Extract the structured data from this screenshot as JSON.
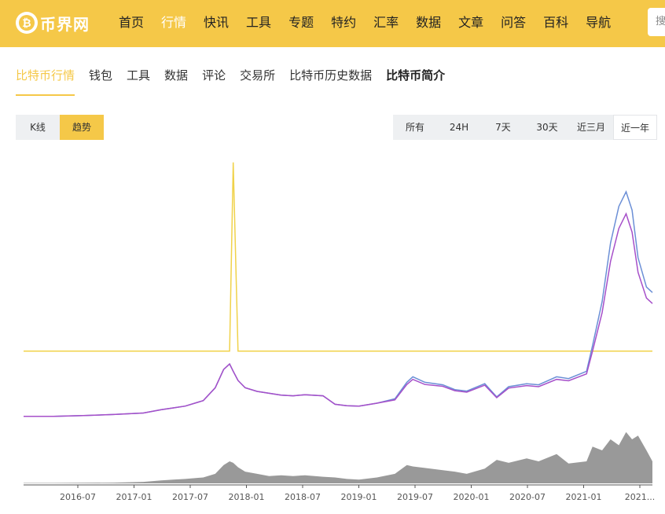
{
  "header": {
    "logo_text": "币界网",
    "nav": [
      "首页",
      "行情",
      "快讯",
      "工具",
      "专题",
      "特约",
      "汇率",
      "数据",
      "文章",
      "问答",
      "百科",
      "导航"
    ],
    "active_index": 1,
    "search_text": "搜"
  },
  "subnav": {
    "items": [
      "比特币行情",
      "钱包",
      "工具",
      "数据",
      "评论",
      "交易所",
      "比特币历史数据",
      "比特币简介"
    ],
    "active_index": 0,
    "bold_index": 7
  },
  "chart_toggle": {
    "options": [
      "K线",
      "趋势"
    ],
    "active_index": 1
  },
  "range_buttons": {
    "options": [
      "所有",
      "24H",
      "7天",
      "30天",
      "近三月",
      "近一年"
    ],
    "active_index": 5
  },
  "colors": {
    "brand": "#f5c848",
    "price_line": "#6b8fd6",
    "price2_line": "#a64fc9",
    "yellow_line": "#f0d24a",
    "volume": "#999999"
  },
  "chart_data": {
    "type": "line",
    "x_tick_labels": [
      "2016-07",
      "2017-01",
      "2017-07",
      "2018-01",
      "2018-07",
      "2019-01",
      "2019-07",
      "2020-01",
      "2020-07",
      "2021-01",
      "2021..."
    ],
    "x": [
      2016.25,
      2016.5,
      2016.75,
      2017.0,
      2017.25,
      2017.4,
      2017.5,
      2017.6,
      2017.75,
      2017.85,
      2017.92,
      2017.97,
      2018.0,
      2018.04,
      2018.1,
      2018.2,
      2018.3,
      2018.4,
      2018.5,
      2018.6,
      2018.75,
      2018.85,
      2018.95,
      2019.05,
      2019.2,
      2019.35,
      2019.45,
      2019.5,
      2019.6,
      2019.75,
      2019.85,
      2019.95,
      2020.1,
      2020.2,
      2020.3,
      2020.45,
      2020.55,
      2020.7,
      2020.8,
      2020.95,
      2021.0,
      2021.08,
      2021.15,
      2021.22,
      2021.28,
      2021.33,
      2021.38,
      2021.45,
      2021.5
    ],
    "series": [
      {
        "key": "price",
        "values": [
          0.7,
          0.7,
          0.9,
          1.2,
          1.6,
          2.5,
          3.0,
          3.5,
          5.0,
          8.5,
          13.5,
          15.0,
          13.0,
          10.5,
          8.5,
          7.5,
          7.0,
          6.5,
          6.3,
          6.6,
          6.3,
          4.0,
          3.6,
          3.5,
          4.3,
          5.5,
          10.0,
          11.5,
          10.0,
          9.3,
          8.0,
          7.6,
          9.6,
          6.0,
          8.8,
          9.6,
          9.3,
          11.5,
          11.0,
          13.0,
          20.0,
          32.0,
          48.0,
          58.0,
          62.0,
          57.0,
          44.0,
          36.0,
          34.5
        ]
      },
      {
        "key": "price2",
        "values": [
          0.7,
          0.7,
          0.9,
          1.2,
          1.6,
          2.5,
          3.0,
          3.5,
          5.0,
          8.5,
          13.5,
          15.0,
          13.0,
          10.5,
          8.5,
          7.5,
          7.0,
          6.5,
          6.3,
          6.6,
          6.3,
          4.0,
          3.6,
          3.5,
          4.3,
          5.2,
          9.4,
          10.8,
          9.4,
          8.9,
          7.7,
          7.3,
          9.2,
          5.8,
          8.4,
          9.1,
          8.8,
          10.8,
          10.4,
          12.3,
          18.5,
          29.0,
          43.0,
          52.0,
          56.0,
          51.0,
          40.0,
          33.0,
          31.5
        ]
      },
      {
        "key": "yellow",
        "values": [
          18.5,
          18.5,
          18.5,
          18.5,
          18.5,
          18.5,
          18.5,
          18.5,
          18.5,
          18.5,
          18.5,
          18.5,
          70.0,
          18.5,
          18.5,
          18.5,
          18.5,
          18.5,
          18.5,
          18.5,
          18.5,
          18.5,
          18.5,
          18.5,
          18.5,
          18.5,
          18.5,
          18.5,
          18.5,
          18.5,
          18.5,
          18.5,
          18.5,
          18.5,
          18.5,
          18.5,
          18.5,
          18.5,
          18.5,
          18.5,
          18.5,
          18.5,
          18.5,
          18.5,
          18.5,
          18.5,
          18.5,
          18.5,
          18.5
        ]
      },
      {
        "key": "volume",
        "values": [
          0.05,
          0.05,
          0.08,
          0.1,
          0.2,
          0.4,
          0.5,
          0.6,
          0.8,
          1.3,
          2.5,
          3.0,
          2.8,
          2.2,
          1.6,
          1.3,
          1.0,
          1.1,
          1.0,
          1.1,
          0.9,
          0.8,
          0.6,
          0.5,
          0.8,
          1.3,
          2.5,
          2.3,
          2.1,
          1.8,
          1.6,
          1.3,
          2.0,
          3.2,
          2.8,
          3.4,
          3.0,
          4.0,
          2.7,
          3.0,
          5.0,
          4.5,
          6.0,
          5.2,
          7.0,
          6.0,
          6.5,
          4.5,
          3.0
        ]
      }
    ]
  }
}
